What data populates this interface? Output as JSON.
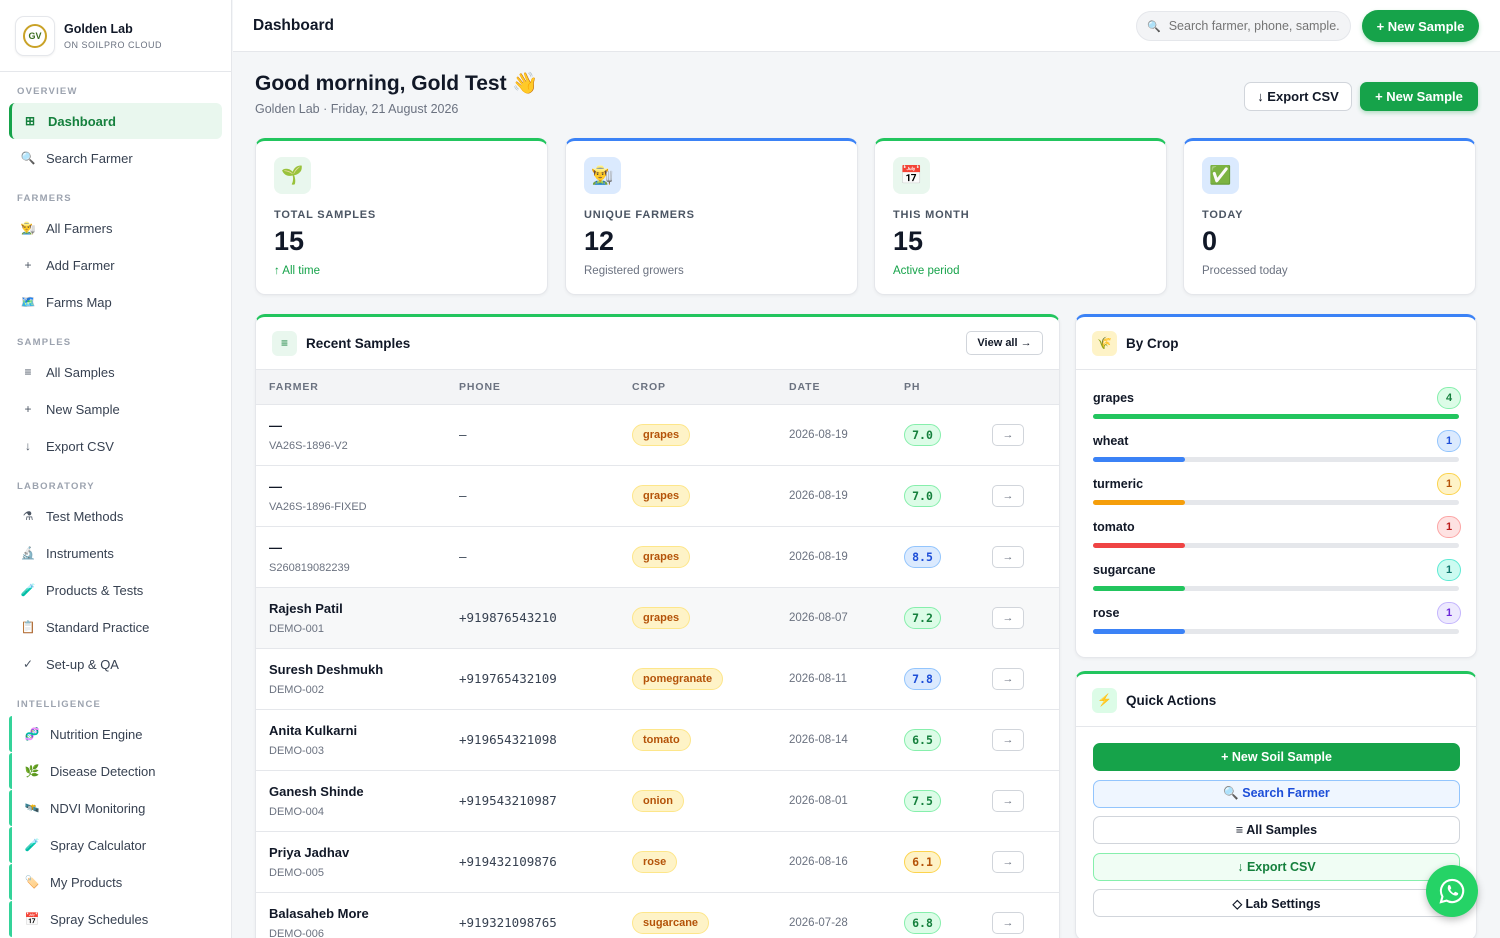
{
  "brand": {
    "name": "Golden Lab",
    "sub": "ON SOILPRO CLOUD",
    "logo_text": "GV"
  },
  "sidebar": {
    "sections": [
      {
        "title": "OVERVIEW",
        "items": [
          {
            "label": "Dashboard",
            "icon": "⊞",
            "active": true
          },
          {
            "label": "Search Farmer",
            "icon": "🔍"
          }
        ]
      },
      {
        "title": "FARMERS",
        "items": [
          {
            "label": "All Farmers",
            "icon": "👨‍🌾"
          },
          {
            "label": "Add Farmer",
            "icon": "+"
          },
          {
            "label": "Farms Map",
            "icon": "🗺️"
          }
        ]
      },
      {
        "title": "SAMPLES",
        "items": [
          {
            "label": "All Samples",
            "icon": "≡"
          },
          {
            "label": "New Sample",
            "icon": "+"
          },
          {
            "label": "Export CSV",
            "icon": "↓"
          }
        ]
      },
      {
        "title": "LABORATORY",
        "items": [
          {
            "label": "Test Methods",
            "icon": "⚗"
          },
          {
            "label": "Instruments",
            "icon": "🔬"
          },
          {
            "label": "Products & Tests",
            "icon": "🧪"
          },
          {
            "label": "Standard Practice",
            "icon": "📋"
          },
          {
            "label": "Set-up & QA",
            "icon": "✓"
          }
        ]
      },
      {
        "title": "INTELLIGENCE",
        "intel": true,
        "items": [
          {
            "label": "Nutrition Engine",
            "icon": "🧬"
          },
          {
            "label": "Disease Detection",
            "icon": "🌿"
          },
          {
            "label": "NDVI Monitoring",
            "icon": "🛰️"
          },
          {
            "label": "Spray Calculator",
            "icon": "🧪"
          },
          {
            "label": "My Products",
            "icon": "🏷️"
          },
          {
            "label": "Spray Schedules",
            "icon": "📅"
          }
        ]
      }
    ]
  },
  "header": {
    "title": "Dashboard",
    "search_placeholder": "Search farmer, phone, sample...",
    "new_sample": "+ New Sample"
  },
  "greeting": {
    "title": "Good morning, Gold Test 👋",
    "subtitle": "Golden Lab · Friday, 21 August 2026",
    "export_label": "↓ Export CSV",
    "new_label": "+ New Sample"
  },
  "stats": [
    {
      "label": "TOTAL SAMPLES",
      "value": "15",
      "note": "↑ All time",
      "icon": "🌱",
      "icon_bg": "#e9f7ee",
      "accent": "green",
      "note_green": true
    },
    {
      "label": "UNIQUE FARMERS",
      "value": "12",
      "note": "Registered growers",
      "icon": "👨‍🌾",
      "icon_bg": "#dbeafe",
      "accent": "blue",
      "note_green": false
    },
    {
      "label": "THIS MONTH",
      "value": "15",
      "note": "Active period",
      "icon": "📅",
      "icon_bg": "#e9f7ee",
      "accent": "green",
      "note_green": true
    },
    {
      "label": "TODAY",
      "value": "0",
      "note": "Processed today",
      "icon": "✅",
      "icon_bg": "#dbeafe",
      "accent": "blue",
      "note_green": false
    }
  ],
  "recent": {
    "title": "Recent Samples",
    "icon": "≡",
    "view_all": "View all →",
    "columns": [
      "FARMER",
      "PHONE",
      "CROP",
      "DATE",
      "PH"
    ],
    "go_label": "→",
    "rows": [
      {
        "farmer": "—",
        "id": "VA26S-1896-V2",
        "phone": "–",
        "crop": "grapes",
        "date": "2026-08-19",
        "ph": "7.0",
        "ph_tone": "green"
      },
      {
        "farmer": "—",
        "id": "VA26S-1896-FIXED",
        "phone": "–",
        "crop": "grapes",
        "date": "2026-08-19",
        "ph": "7.0",
        "ph_tone": "green"
      },
      {
        "farmer": "—",
        "id": "S260819082239",
        "phone": "–",
        "crop": "grapes",
        "date": "2026-08-19",
        "ph": "8.5",
        "ph_tone": "blue"
      },
      {
        "farmer": "Rajesh Patil",
        "id": "DEMO-001",
        "phone": "+919876543210",
        "crop": "grapes",
        "date": "2026-08-07",
        "ph": "7.2",
        "ph_tone": "green",
        "highlight": true
      },
      {
        "farmer": "Suresh Deshmukh",
        "id": "DEMO-002",
        "phone": "+919765432109",
        "crop": "pomegranate",
        "date": "2026-08-11",
        "ph": "7.8",
        "ph_tone": "blue"
      },
      {
        "farmer": "Anita Kulkarni",
        "id": "DEMO-003",
        "phone": "+919654321098",
        "crop": "tomato",
        "date": "2026-08-14",
        "ph": "6.5",
        "ph_tone": "green"
      },
      {
        "farmer": "Ganesh Shinde",
        "id": "DEMO-004",
        "phone": "+919543210987",
        "crop": "onion",
        "date": "2026-08-01",
        "ph": "7.5",
        "ph_tone": "green"
      },
      {
        "farmer": "Priya Jadhav",
        "id": "DEMO-005",
        "phone": "+919432109876",
        "crop": "rose",
        "date": "2026-08-16",
        "ph": "6.1",
        "ph_tone": "amber"
      },
      {
        "farmer": "Balasaheb More",
        "id": "DEMO-006",
        "phone": "+919321098765",
        "crop": "sugarcane",
        "date": "2026-07-28",
        "ph": "6.8",
        "ph_tone": "green"
      }
    ]
  },
  "bycrop": {
    "title": "By Crop",
    "icon": "🌾",
    "max": 4,
    "crops": [
      {
        "name": "grapes",
        "count": 4,
        "bar": "#22c55e",
        "badge_bg": "#dcfce7",
        "badge_fg": "#15803d",
        "badge_border": "#86efac"
      },
      {
        "name": "wheat",
        "count": 1,
        "bar": "#3b82f6",
        "badge_bg": "#dbeafe",
        "badge_fg": "#1d4ed8",
        "badge_border": "#93c5fd"
      },
      {
        "name": "turmeric",
        "count": 1,
        "bar": "#f59e0b",
        "badge_bg": "#fef3c7",
        "badge_fg": "#b45309",
        "badge_border": "#fcd34d"
      },
      {
        "name": "tomato",
        "count": 1,
        "bar": "#ef4444",
        "badge_bg": "#fee2e2",
        "badge_fg": "#b91c1c",
        "badge_border": "#fca5a5"
      },
      {
        "name": "sugarcane",
        "count": 1,
        "bar": "#22c55e",
        "badge_bg": "#ccfbf1",
        "badge_fg": "#0f766e",
        "badge_border": "#5eead4"
      },
      {
        "name": "rose",
        "count": 1,
        "bar": "#3b82f6",
        "badge_bg": "#ede9fe",
        "badge_fg": "#6d28d9",
        "badge_border": "#c4b5fd"
      }
    ]
  },
  "quick": {
    "title": "Quick Actions",
    "icon": "⚡",
    "actions": [
      {
        "label": "+ New Soil Sample",
        "bg": "#16a34a",
        "fg": "#ffffff",
        "border": "#16a34a"
      },
      {
        "label": "🔍 Search Farmer",
        "bg": "#eff6ff",
        "fg": "#1d4ed8",
        "border": "#93c5fd"
      },
      {
        "label": "≡ All Samples",
        "bg": "#ffffff",
        "fg": "#111827",
        "border": "#d1d5db"
      },
      {
        "label": "↓ Export CSV",
        "bg": "#f0fdf4",
        "fg": "#15803d",
        "border": "#86efac"
      },
      {
        "label": "◇ Lab Settings",
        "bg": "#ffffff",
        "fg": "#111827",
        "border": "#d1d5db"
      }
    ]
  }
}
